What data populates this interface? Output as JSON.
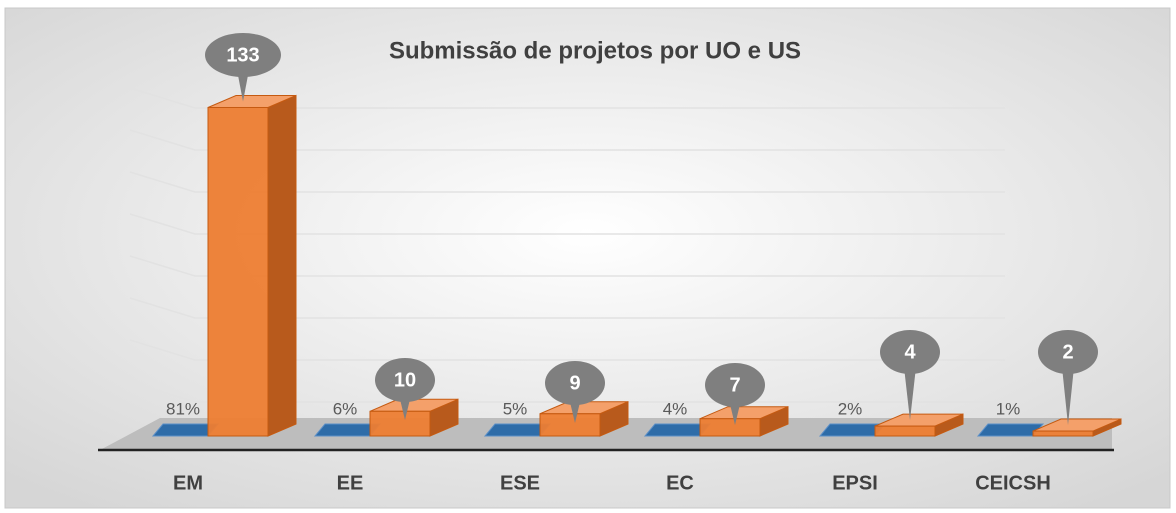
{
  "chart_data": {
    "type": "bar3d",
    "title": "Submissão de projetos por UO e US",
    "categories": [
      "EM",
      "EE",
      "ESE",
      "EC",
      "EPSI",
      "CEICSH"
    ],
    "series": [
      {
        "color": "#2e6ca8",
        "values": [
          81,
          6,
          5,
          4,
          2,
          1
        ],
        "value_labels": [
          "81%",
          "6%",
          "5%",
          "4%",
          "2%",
          "1%"
        ]
      },
      {
        "color": "#ed7d31",
        "values": [
          133,
          10,
          9,
          7,
          4,
          2
        ]
      }
    ]
  }
}
